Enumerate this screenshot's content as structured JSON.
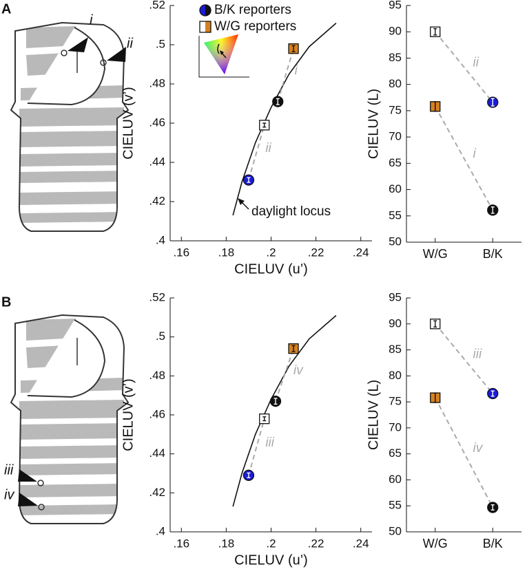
{
  "panel_labels": [
    "A",
    "B"
  ],
  "dress_labels": [
    [
      "i",
      "ii"
    ],
    [
      "iii",
      "iv"
    ]
  ],
  "chart_data": [
    {
      "type": "scatter",
      "xlabel": "CIELUV (u’)",
      "ylabel": "CIELUV (v’)",
      "xlim": [
        0.155,
        0.245
      ],
      "ylim": [
        0.4,
        0.52
      ],
      "xticks": [
        {
          "value": 0.16,
          "label": ".16"
        },
        {
          "value": 0.18,
          "label": ".18"
        },
        {
          "value": 0.2,
          "label": ".2"
        },
        {
          "value": 0.22,
          "label": ".22"
        },
        {
          "value": 0.24,
          "label": ".24"
        }
      ],
      "yticks": [
        {
          "value": 0.4,
          "label": ".4"
        },
        {
          "value": 0.42,
          "label": ".42"
        },
        {
          "value": 0.44,
          "label": ".44"
        },
        {
          "value": 0.46,
          "label": ".46"
        },
        {
          "value": 0.48,
          "label": ".48"
        },
        {
          "value": 0.5,
          "label": ".5"
        },
        {
          "value": 0.52,
          "label": ".52"
        }
      ],
      "legend": true,
      "series": [
        {
          "name": "B/K reporters",
          "marker": "circle",
          "colors": [
            "#1c1cd8",
            "#111111"
          ],
          "x": [
            0.19,
            0.203
          ],
          "values": [
            0.431,
            0.471
          ],
          "errors": [
            0.0012,
            0.0015
          ]
        },
        {
          "name": "W/G reporters",
          "marker": "square",
          "colors": [
            "#ffffff",
            "#d6811f"
          ],
          "x": [
            0.197,
            0.21
          ],
          "values": [
            0.459,
            0.498
          ],
          "errors": [
            0.001,
            0.0015
          ]
        }
      ],
      "pair_labels": [
        "ii",
        "i"
      ],
      "curve": {
        "x": [
          0.183,
          0.187,
          0.193,
          0.2,
          0.208,
          0.217,
          0.229
        ],
        "values": [
          0.413,
          0.43,
          0.45,
          0.468,
          0.485,
          0.499,
          0.511
        ]
      },
      "curve_label": "daylight locus"
    },
    {
      "type": "dot",
      "ylabel": "CIELUV (L)",
      "categories": [
        "W/G",
        "B/K"
      ],
      "ylim": [
        50,
        95
      ],
      "yticks": [
        50,
        55,
        60,
        65,
        70,
        75,
        80,
        85,
        90,
        95
      ],
      "series": [
        {
          "marker": "square",
          "colors": [
            "#ffffff",
            "#d6811f"
          ],
          "values": [
            90,
            75.8
          ],
          "errors": [
            0.6,
            0.9
          ]
        },
        {
          "marker": "circle",
          "colors": [
            "#1c1cd8",
            "#111111"
          ],
          "values": [
            76.6,
            56.1
          ],
          "errors": [
            0.7,
            0.6
          ]
        }
      ],
      "pair_labels": [
        "ii",
        "i"
      ]
    },
    {
      "type": "scatter",
      "xlabel": "CIELUV (u’)",
      "ylabel": "CIELUV (v’)",
      "xlim": [
        0.155,
        0.245
      ],
      "ylim": [
        0.4,
        0.52
      ],
      "xticks": [
        {
          "value": 0.16,
          "label": ".16"
        },
        {
          "value": 0.18,
          "label": ".18"
        },
        {
          "value": 0.2,
          "label": ".2"
        },
        {
          "value": 0.22,
          "label": ".22"
        },
        {
          "value": 0.24,
          "label": ".24"
        }
      ],
      "yticks": [
        {
          "value": 0.4,
          "label": ".4"
        },
        {
          "value": 0.42,
          "label": ".42"
        },
        {
          "value": 0.44,
          "label": ".44"
        },
        {
          "value": 0.46,
          "label": ".46"
        },
        {
          "value": 0.48,
          "label": ".48"
        },
        {
          "value": 0.5,
          "label": ".5"
        },
        {
          "value": 0.52,
          "label": ".52"
        }
      ],
      "series": [
        {
          "marker": "circle",
          "colors": [
            "#1c1cd8",
            "#111111"
          ],
          "x": [
            0.19,
            0.202
          ],
          "values": [
            0.429,
            0.467
          ],
          "errors": [
            0.0012,
            0.0015
          ]
        },
        {
          "marker": "square",
          "colors": [
            "#ffffff",
            "#d6811f"
          ],
          "x": [
            0.197,
            0.21
          ],
          "values": [
            0.458,
            0.494
          ],
          "errors": [
            0.001,
            0.0015
          ]
        }
      ],
      "pair_labels": [
        "iii",
        "iv"
      ],
      "curve": {
        "x": [
          0.183,
          0.187,
          0.193,
          0.2,
          0.208,
          0.217,
          0.229
        ],
        "values": [
          0.413,
          0.43,
          0.45,
          0.468,
          0.485,
          0.499,
          0.511
        ]
      }
    },
    {
      "type": "dot",
      "ylabel": "CIELUV (L)",
      "categories": [
        "W/G",
        "B/K"
      ],
      "ylim": [
        50,
        95
      ],
      "yticks": [
        50,
        55,
        60,
        65,
        70,
        75,
        80,
        85,
        90,
        95
      ],
      "series": [
        {
          "marker": "square",
          "colors": [
            "#ffffff",
            "#d6811f"
          ],
          "values": [
            90,
            75.8
          ],
          "errors": [
            0.6,
            0.9
          ]
        },
        {
          "marker": "circle",
          "colors": [
            "#1c1cd8",
            "#111111"
          ],
          "values": [
            76.6,
            54.7
          ],
          "errors": [
            0.5,
            0.5
          ]
        }
      ],
      "pair_labels": [
        "iii",
        "iv"
      ]
    }
  ]
}
